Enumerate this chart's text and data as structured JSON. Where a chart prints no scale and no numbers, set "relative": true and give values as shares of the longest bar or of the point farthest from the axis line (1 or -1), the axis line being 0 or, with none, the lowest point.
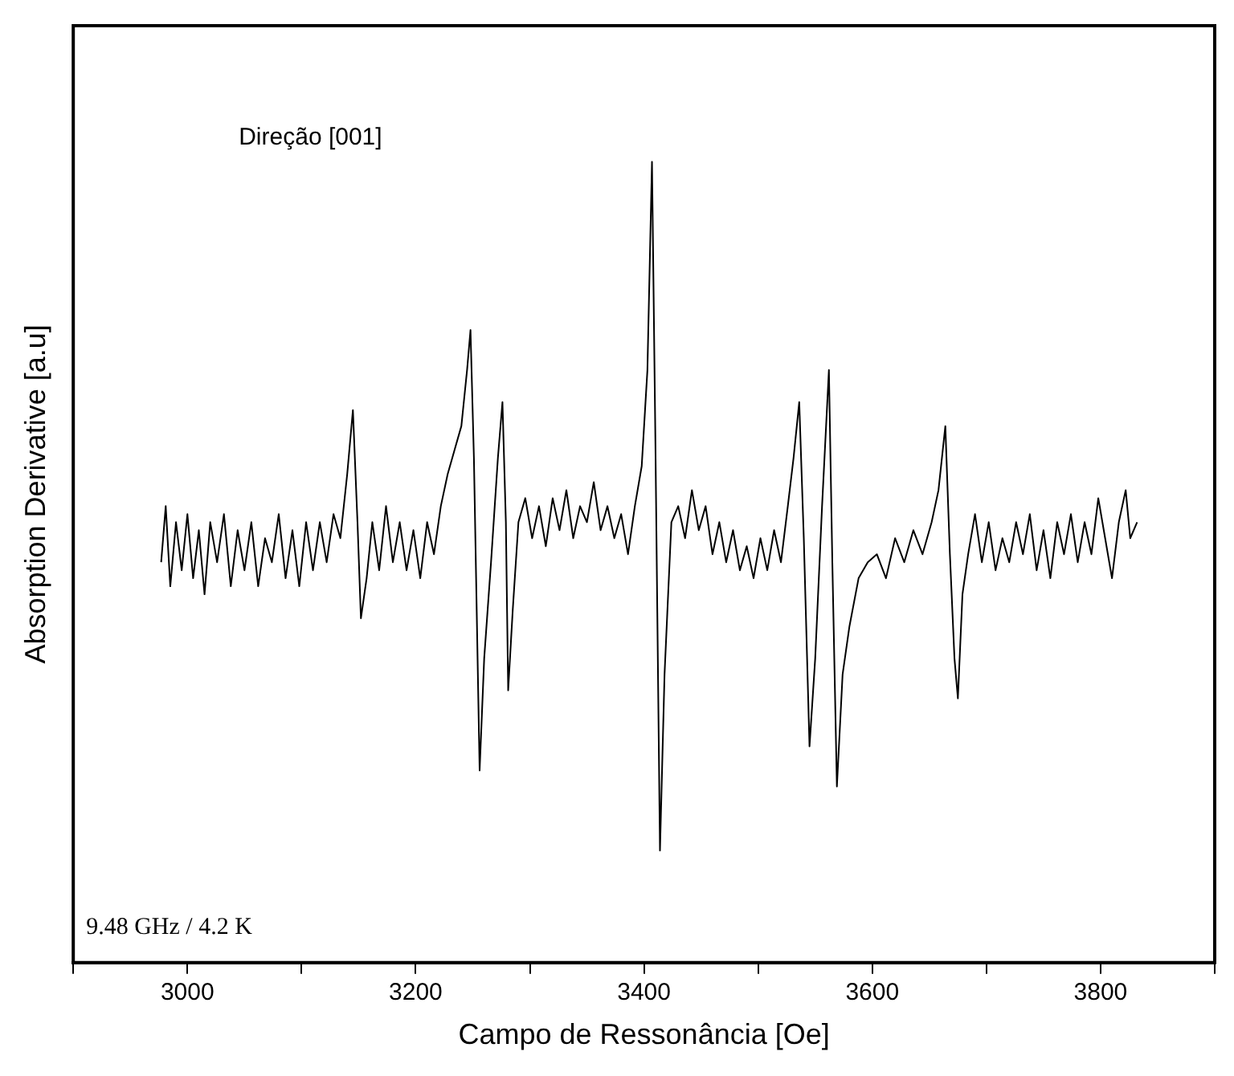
{
  "chart_data": {
    "type": "line",
    "xlabel": "Campo de Ressonância [Oe]",
    "ylabel": "Absorption Derivative [a.u]",
    "relative": true,
    "annotations": [
      "Direção [001]",
      "9.48 GHz / 4.2 K"
    ],
    "xlim": [
      2900,
      3900
    ],
    "xticks": [
      {
        "value": 2900,
        "label": null
      },
      3000,
      {
        "value": 3100,
        "label": null
      },
      3200,
      {
        "value": 3300,
        "label": null
      },
      3400,
      {
        "value": 3500,
        "label": null
      },
      3600,
      {
        "value": 3700,
        "label": null
      },
      3800,
      {
        "value": 3900,
        "label": null
      }
    ],
    "grid": false,
    "legend": false,
    "marker": "none",
    "line_style": "solid",
    "series": [
      {
        "color": "#000000",
        "x": [
          2977,
          2981,
          2985,
          2990,
          2995,
          3000,
          3005,
          3010,
          3015,
          3020,
          3026,
          3032,
          3038,
          3044,
          3050,
          3056,
          3062,
          3068,
          3074,
          3080,
          3086,
          3092,
          3098,
          3104,
          3110,
          3116,
          3122,
          3128,
          3134,
          3140,
          3145,
          3149,
          3152,
          3157,
          3162,
          3168,
          3174,
          3180,
          3186,
          3192,
          3198,
          3204,
          3210,
          3216,
          3222,
          3228,
          3234,
          3240,
          3245,
          3248,
          3251,
          3256,
          3260,
          3266,
          3272,
          3276,
          3279,
          3281,
          3285,
          3290,
          3296,
          3302,
          3308,
          3314,
          3320,
          3326,
          3332,
          3338,
          3344,
          3350,
          3356,
          3362,
          3368,
          3374,
          3380,
          3386,
          3392,
          3398,
          3403,
          3407,
          3410,
          3414,
          3418,
          3424,
          3430,
          3436,
          3442,
          3448,
          3454,
          3460,
          3466,
          3472,
          3478,
          3484,
          3490,
          3496,
          3502,
          3508,
          3514,
          3520,
          3526,
          3531,
          3536,
          3540,
          3545,
          3550,
          3556,
          3562,
          3565,
          3569,
          3574,
          3580,
          3588,
          3596,
          3604,
          3612,
          3620,
          3628,
          3636,
          3644,
          3652,
          3658,
          3664,
          3668,
          3672,
          3675,
          3679,
          3684,
          3690,
          3696,
          3702,
          3708,
          3714,
          3720,
          3726,
          3732,
          3738,
          3744,
          3750,
          3756,
          3762,
          3768,
          3774,
          3780,
          3786,
          3792,
          3798,
          3804,
          3810,
          3816,
          3822,
          3826,
          3832
        ],
        "values": [
          0.5,
          0.57,
          0.47,
          0.55,
          0.49,
          0.56,
          0.48,
          0.54,
          0.46,
          0.55,
          0.5,
          0.56,
          0.47,
          0.54,
          0.49,
          0.55,
          0.47,
          0.53,
          0.5,
          0.56,
          0.48,
          0.54,
          0.47,
          0.55,
          0.49,
          0.55,
          0.5,
          0.56,
          0.53,
          0.61,
          0.69,
          0.55,
          0.43,
          0.48,
          0.55,
          0.49,
          0.57,
          0.5,
          0.55,
          0.49,
          0.54,
          0.48,
          0.55,
          0.51,
          0.57,
          0.61,
          0.64,
          0.67,
          0.74,
          0.79,
          0.63,
          0.24,
          0.38,
          0.5,
          0.63,
          0.7,
          0.55,
          0.34,
          0.44,
          0.55,
          0.58,
          0.53,
          0.57,
          0.52,
          0.58,
          0.54,
          0.59,
          0.53,
          0.57,
          0.55,
          0.6,
          0.54,
          0.57,
          0.53,
          0.56,
          0.51,
          0.57,
          0.62,
          0.74,
          1,
          0.65,
          0.14,
          0.36,
          0.55,
          0.57,
          0.53,
          0.59,
          0.54,
          0.57,
          0.51,
          0.55,
          0.5,
          0.54,
          0.49,
          0.52,
          0.48,
          0.53,
          0.49,
          0.54,
          0.5,
          0.57,
          0.63,
          0.7,
          0.53,
          0.27,
          0.38,
          0.57,
          0.74,
          0.5,
          0.22,
          0.36,
          0.42,
          0.48,
          0.5,
          0.51,
          0.48,
          0.53,
          0.5,
          0.54,
          0.51,
          0.55,
          0.59,
          0.67,
          0.51,
          0.38,
          0.33,
          0.46,
          0.51,
          0.56,
          0.5,
          0.55,
          0.49,
          0.53,
          0.5,
          0.55,
          0.51,
          0.56,
          0.49,
          0.54,
          0.48,
          0.55,
          0.51,
          0.56,
          0.5,
          0.55,
          0.51,
          0.58,
          0.53,
          0.48,
          0.55,
          0.59,
          0.53,
          0.55
        ]
      }
    ]
  }
}
